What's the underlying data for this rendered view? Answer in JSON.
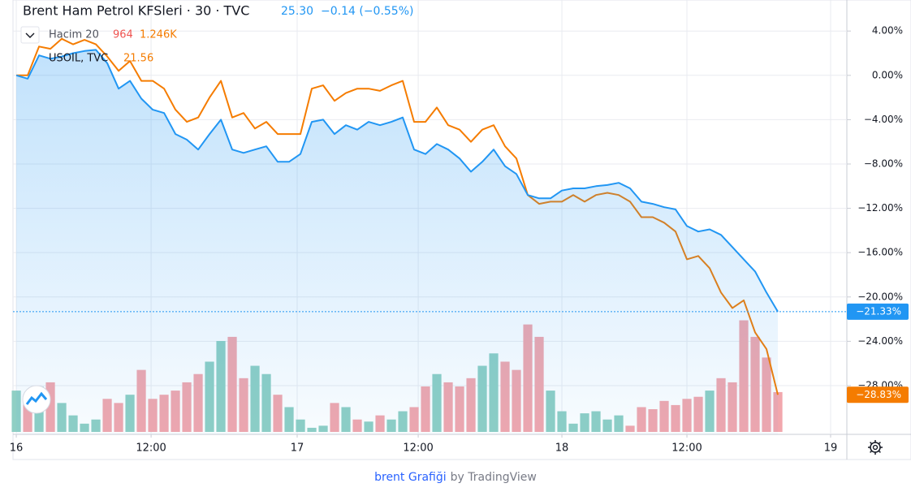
{
  "chart_data": {
    "type": "line",
    "title": "Brent Ham Petrol KFSleri · 30 · TVC",
    "price": "25.30",
    "change": "−0.14 (−0.55%)",
    "xlim": [
      -0.29,
      73.07
    ],
    "xticks": [
      {
        "value": 0,
        "label": "16"
      },
      {
        "value": 11.86,
        "label": "12:00"
      },
      {
        "value": 24.71,
        "label": "17"
      },
      {
        "value": 35.36,
        "label": "12:00"
      },
      {
        "value": 48,
        "label": "18"
      },
      {
        "value": 59,
        "label": "12:00"
      },
      {
        "value": 71.64,
        "label": "19"
      }
    ],
    "ylim": [
      -32.4,
      6.8
    ],
    "yticks": [
      {
        "value": 4,
        "label": "4.00%"
      },
      {
        "value": 0,
        "label": "0.00%"
      },
      {
        "value": -4,
        "label": "−4.00%"
      },
      {
        "value": -8,
        "label": "−8.00%"
      },
      {
        "value": -12,
        "label": "−12.00%"
      },
      {
        "value": -16,
        "label": "−16.00%"
      },
      {
        "value": -20,
        "label": "−20.00%"
      },
      {
        "value": -24,
        "label": "−24.00%"
      },
      {
        "value": -28,
        "label": "−28.00%"
      }
    ],
    "grid": true,
    "series": [
      {
        "name": "Brent",
        "color": "#2196f3",
        "area": true,
        "last_label": "−21.33%",
        "values": [
          0,
          -0.3,
          1.8,
          1.5,
          1.7,
          2.0,
          2.2,
          2.3,
          1.1,
          -1.2,
          -0.5,
          -2.1,
          -3.1,
          -3.4,
          -5.3,
          -5.8,
          -6.7,
          -5.3,
          -4.0,
          -6.7,
          -7.0,
          -6.7,
          -6.4,
          -7.8,
          -7.8,
          -7.1,
          -4.2,
          -4.0,
          -5.3,
          -4.5,
          -4.9,
          -4.2,
          -4.5,
          -4.2,
          -3.8,
          -6.7,
          -7.1,
          -6.2,
          -6.7,
          -7.5,
          -8.7,
          -7.8,
          -6.7,
          -8.2,
          -8.9,
          -10.8,
          -11.1,
          -11.1,
          -10.4,
          -10.2,
          -10.2,
          -10.0,
          -9.9,
          -9.7,
          -10.2,
          -11.4,
          -11.6,
          -11.9,
          -12.1,
          -13.6,
          -14.1,
          -13.9,
          -14.4,
          -15.5,
          -16.6,
          -17.7,
          -19.6,
          -21.33
        ]
      },
      {
        "name": "USOIL, TVC",
        "color": "#f57c00",
        "price": "21.56",
        "last_label": "−28.83%",
        "values": [
          0,
          0,
          2.6,
          2.4,
          3.3,
          2.8,
          3.2,
          2.8,
          1.7,
          0.4,
          1.3,
          -0.5,
          -0.5,
          -1.2,
          -3.1,
          -4.2,
          -3.8,
          -2.0,
          -0.5,
          -3.8,
          -3.4,
          -4.8,
          -4.2,
          -5.3,
          -5.3,
          -5.3,
          -1.2,
          -0.9,
          -2.3,
          -1.6,
          -1.2,
          -1.2,
          -1.4,
          -0.9,
          -0.5,
          -4.2,
          -4.2,
          -2.9,
          -4.5,
          -4.9,
          -6.0,
          -4.9,
          -4.5,
          -6.4,
          -7.5,
          -10.8,
          -11.6,
          -11.4,
          -11.4,
          -10.8,
          -11.4,
          -10.8,
          -10.6,
          -10.8,
          -11.4,
          -12.8,
          -12.8,
          -13.3,
          -14.1,
          -16.6,
          -16.3,
          -17.4,
          -19.6,
          -21.0,
          -20.3,
          -23.2,
          -24.7,
          -28.83
        ]
      }
    ],
    "volume": {
      "name": "Hacim 20",
      "ma_label": "1.246K",
      "vlim": [
        0,
        2750
      ],
      "up_color": "#8fcfc4",
      "down_color": "#f2a7ad",
      "values": [
        1000,
        900,
        1100,
        1200,
        700,
        400,
        200,
        300,
        800,
        700,
        900,
        1500,
        800,
        900,
        1000,
        1200,
        1400,
        1700,
        2200,
        2300,
        1300,
        1600,
        1400,
        900,
        600,
        300,
        100,
        150,
        700,
        600,
        300,
        250,
        400,
        300,
        500,
        600,
        1100,
        1400,
        1200,
        1100,
        1300,
        1600,
        1900,
        1700,
        1500,
        2600,
        2300,
        1000,
        500,
        200,
        450,
        500,
        300,
        400,
        150,
        600,
        550,
        750,
        650,
        800,
        850,
        1000,
        1300,
        1200,
        2700,
        2300,
        1800,
        964
      ]
    },
    "footer_link": "brent Grafiği",
    "footer_by": "by TradingView"
  }
}
